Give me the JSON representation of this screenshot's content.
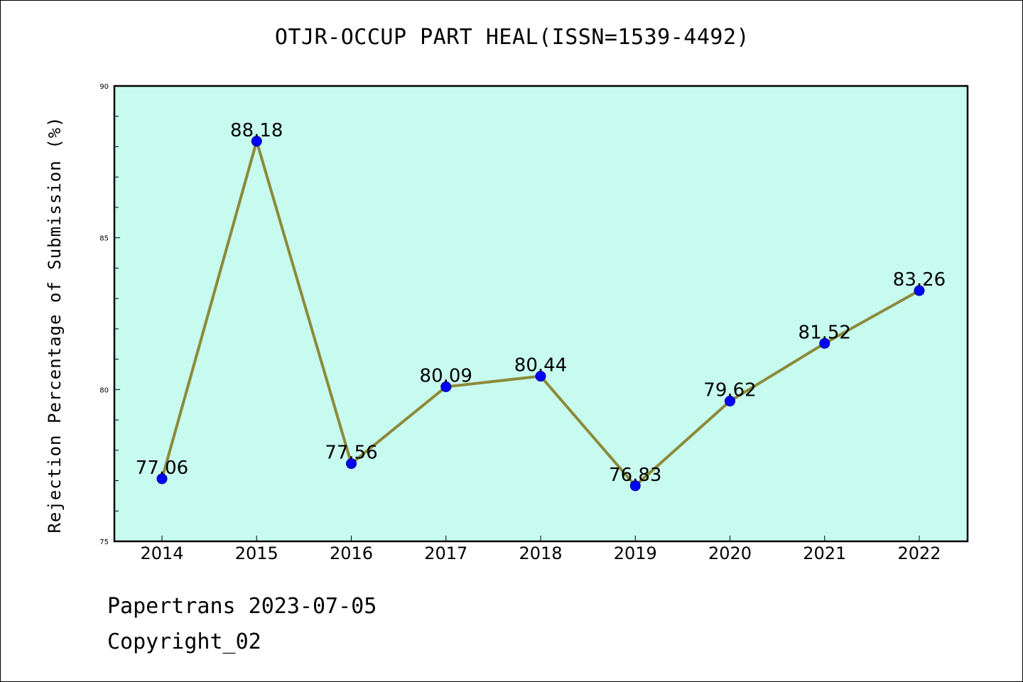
{
  "chart_data": {
    "type": "line",
    "title": "OTJR-OCCUP PART HEAL(ISSN=1539-4492)",
    "xlabel": "",
    "ylabel": "Rejection Percentage of Submission (%)",
    "categories": [
      "2014",
      "2015",
      "2016",
      "2017",
      "2018",
      "2019",
      "2020",
      "2021",
      "2022"
    ],
    "series": [
      {
        "values": [
          77.06,
          88.18,
          77.56,
          80.09,
          80.44,
          76.83,
          79.62,
          81.52,
          83.26
        ],
        "labels": [
          "77.06",
          "88.18",
          "77.56",
          "80.09",
          "80.44",
          "76.83",
          "79.62",
          "81.52",
          "83.26"
        ]
      }
    ],
    "ylim": [
      75,
      90
    ],
    "yticks": [
      "75",
      "80",
      "85",
      "90"
    ],
    "grid": false,
    "legend": "none",
    "colors": {
      "plot_background": "#c8fbef",
      "line": "#8c8a3a",
      "marker": "#0000ff"
    }
  },
  "footer": {
    "date_line": "Papertrans 2023-07-05",
    "copyright": "Copyright_02"
  }
}
